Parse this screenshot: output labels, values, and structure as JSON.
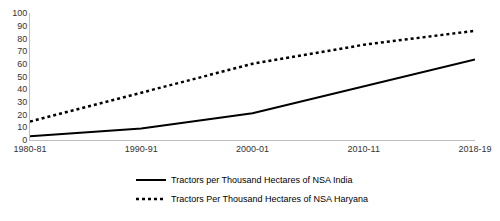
{
  "chart_data": {
    "type": "line",
    "categories": [
      "1980-81",
      "1990-91",
      "2000-01",
      "2010-11",
      "2018-19"
    ],
    "series": [
      {
        "name": "Tractors per Thousand Hectares of NSA India",
        "color": "#000000",
        "line_style": "solid",
        "values": [
          3,
          9,
          21,
          42,
          63.5
        ]
      },
      {
        "name": "Tractors Per Thousand Hectares of NSA Haryana",
        "color": "#000000",
        "line_style": "dot",
        "values": [
          14.5,
          37,
          60,
          75,
          86
        ]
      }
    ],
    "ylim": [
      0,
      100
    ],
    "yticks": [
      0,
      10,
      20,
      30,
      40,
      50,
      60,
      70,
      80,
      90,
      100
    ],
    "grid": false,
    "legend": "bottom"
  }
}
